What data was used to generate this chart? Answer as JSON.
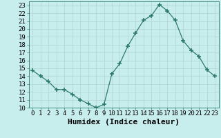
{
  "x": [
    0,
    1,
    2,
    3,
    4,
    5,
    6,
    7,
    8,
    9,
    10,
    11,
    12,
    13,
    14,
    15,
    16,
    17,
    18,
    19,
    20,
    21,
    22,
    23
  ],
  "y": [
    14.7,
    14.0,
    13.3,
    12.3,
    12.3,
    11.7,
    11.0,
    10.5,
    10.0,
    10.4,
    14.3,
    15.6,
    17.8,
    19.5,
    21.1,
    21.7,
    23.1,
    22.3,
    21.1,
    18.5,
    17.3,
    16.5,
    14.8,
    14.0
  ],
  "line_color": "#2d7a6a",
  "marker_color": "#2d7a6a",
  "bg_color": "#c8eded",
  "grid_color": "#b0d4d4",
  "xlabel": "Humidex (Indice chaleur)",
  "xlim": [
    -0.5,
    23.5
  ],
  "ylim": [
    10,
    23.5
  ],
  "yticks": [
    10,
    11,
    12,
    13,
    14,
    15,
    16,
    17,
    18,
    19,
    20,
    21,
    22,
    23
  ],
  "xticks": [
    0,
    1,
    2,
    3,
    4,
    5,
    6,
    7,
    8,
    9,
    10,
    11,
    12,
    13,
    14,
    15,
    16,
    17,
    18,
    19,
    20,
    21,
    22,
    23
  ],
  "tick_label_fontsize": 6.5,
  "xlabel_fontsize": 8
}
